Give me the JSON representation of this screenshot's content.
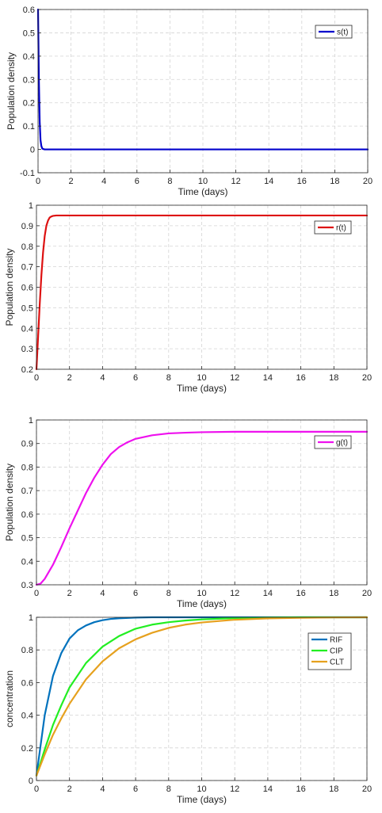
{
  "chart_data": [
    {
      "type": "line",
      "xlabel": "Time (days)",
      "ylabel": "Population density",
      "xlim": [
        0,
        20
      ],
      "ylim": [
        -0.1,
        0.6
      ],
      "xticks": [
        "0",
        "2",
        "4",
        "6",
        "8",
        "10",
        "12",
        "14",
        "16",
        "18",
        "20"
      ],
      "yticks": [
        "-0.1",
        "0",
        "0.1",
        "0.2",
        "0.3",
        "0.4",
        "0.5",
        "0.6"
      ],
      "grid": true,
      "legend_position": "top-right",
      "series": [
        {
          "name": "s(t)",
          "color": "#0000cc",
          "x": [
            0,
            0.05,
            0.1,
            0.15,
            0.2,
            0.25,
            0.3,
            0.4,
            0.5,
            1,
            2,
            4,
            6,
            8,
            10,
            12,
            14,
            16,
            18,
            20
          ],
          "y": [
            0.6,
            0.3,
            0.12,
            0.04,
            0.015,
            0.005,
            0.002,
            0,
            0,
            0,
            0,
            0,
            0,
            0,
            0,
            0,
            0,
            0,
            0,
            0
          ]
        }
      ]
    },
    {
      "type": "line",
      "xlabel": "Time (days)",
      "ylabel": "Population density",
      "xlim": [
        0,
        20
      ],
      "ylim": [
        0.2,
        1
      ],
      "xticks": [
        "0",
        "2",
        "4",
        "6",
        "8",
        "10",
        "12",
        "14",
        "16",
        "18",
        "20"
      ],
      "yticks": [
        "0.2",
        "0.3",
        "0.4",
        "0.5",
        "0.6",
        "0.7",
        "0.8",
        "0.9",
        "1"
      ],
      "grid": true,
      "legend_position": "top-right",
      "series": [
        {
          "name": "r(t)",
          "color": "#dd1111",
          "x": [
            0,
            0.1,
            0.2,
            0.3,
            0.4,
            0.5,
            0.6,
            0.7,
            0.8,
            0.9,
            1.0,
            1.2,
            1.5,
            2,
            4,
            6,
            8,
            10,
            12,
            14,
            16,
            18,
            20
          ],
          "y": [
            0.2,
            0.36,
            0.52,
            0.66,
            0.77,
            0.85,
            0.9,
            0.925,
            0.94,
            0.945,
            0.948,
            0.95,
            0.95,
            0.95,
            0.95,
            0.95,
            0.95,
            0.95,
            0.95,
            0.95,
            0.95,
            0.95,
            0.95
          ]
        }
      ]
    },
    {
      "type": "line",
      "xlabel": "Time (days)",
      "ylabel": "Population density",
      "xlim": [
        0,
        20
      ],
      "ylim": [
        0.3,
        1
      ],
      "xticks": [
        "0",
        "2",
        "4",
        "6",
        "8",
        "10",
        "12",
        "14",
        "16",
        "18",
        "20"
      ],
      "yticks": [
        "0.3",
        "0.4",
        "0.5",
        "0.6",
        "0.7",
        "0.8",
        "0.9",
        "1"
      ],
      "grid": true,
      "legend_position": "top-right",
      "series": [
        {
          "name": "g(t)",
          "color": "#ee11ee",
          "x": [
            0,
            0.25,
            0.5,
            1,
            1.5,
            2,
            2.5,
            3,
            3.5,
            4,
            4.5,
            5,
            5.5,
            6,
            7,
            8,
            9,
            10,
            12,
            14,
            16,
            18,
            20
          ],
          "y": [
            0.3,
            0.305,
            0.325,
            0.385,
            0.46,
            0.54,
            0.615,
            0.69,
            0.755,
            0.81,
            0.855,
            0.885,
            0.905,
            0.92,
            0.935,
            0.943,
            0.946,
            0.948,
            0.95,
            0.95,
            0.95,
            0.95,
            0.95
          ]
        }
      ]
    },
    {
      "type": "line",
      "xlabel": "Time (days)",
      "ylabel": "concentration",
      "xlim": [
        0,
        20
      ],
      "ylim": [
        0,
        1
      ],
      "xticks": [
        "0",
        "2",
        "4",
        "6",
        "8",
        "10",
        "12",
        "14",
        "16",
        "18",
        "20"
      ],
      "yticks": [
        "0",
        "0.2",
        "0.4",
        "0.6",
        "0.8",
        "1"
      ],
      "grid": true,
      "legend_position": "top-right",
      "series": [
        {
          "name": "RIF",
          "color": "#0072bd",
          "x": [
            0,
            0.5,
            1,
            1.5,
            2,
            2.5,
            3,
            3.5,
            4,
            4.5,
            5,
            6,
            7,
            8,
            10,
            12,
            14,
            16,
            18,
            20
          ],
          "y": [
            0.03,
            0.4,
            0.64,
            0.78,
            0.87,
            0.92,
            0.95,
            0.97,
            0.982,
            0.99,
            0.994,
            0.998,
            1,
            1,
            1,
            1,
            1,
            1,
            1,
            1
          ]
        },
        {
          "name": "CIP",
          "color": "#22ee22",
          "x": [
            0,
            0.5,
            1,
            1.5,
            2,
            3,
            4,
            5,
            6,
            7,
            8,
            9,
            10,
            12,
            14,
            16,
            18,
            20
          ],
          "y": [
            0.03,
            0.19,
            0.34,
            0.46,
            0.57,
            0.72,
            0.82,
            0.885,
            0.93,
            0.955,
            0.97,
            0.98,
            0.987,
            0.995,
            0.998,
            1,
            1,
            1
          ]
        },
        {
          "name": "CLT",
          "color": "#e6a11e",
          "x": [
            0,
            0.5,
            1,
            1.5,
            2,
            3,
            4,
            5,
            6,
            7,
            8,
            9,
            10,
            12,
            14,
            16,
            18,
            20
          ],
          "y": [
            0.03,
            0.16,
            0.28,
            0.38,
            0.47,
            0.62,
            0.73,
            0.81,
            0.865,
            0.905,
            0.935,
            0.955,
            0.968,
            0.985,
            0.993,
            0.997,
            0.999,
            1
          ]
        }
      ]
    }
  ]
}
